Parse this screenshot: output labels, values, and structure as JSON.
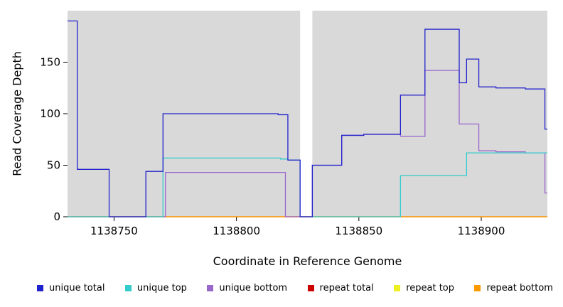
{
  "chart_data": {
    "type": "line",
    "step": true,
    "title": "",
    "xlabel": "Coordinate in Reference Genome",
    "ylabel": "Read Coverage Depth",
    "xlim": [
      1138731,
      1138927
    ],
    "ylim": [
      0,
      200
    ],
    "x_ticks": [
      1138750,
      1138800,
      1138850,
      1138900
    ],
    "y_ticks": [
      0,
      50,
      100,
      150
    ],
    "plot_bg": "#d9d9d9",
    "page_bg": "#ffffff",
    "gap": {
      "from": 1138826,
      "to": 1138831
    },
    "legend_position": "bottom",
    "grid": false,
    "series": [
      {
        "name": "unique total",
        "color": "#2222cc",
        "z": 6,
        "points": [
          [
            1138731,
            190
          ],
          [
            1138735,
            46
          ],
          [
            1138748,
            0
          ],
          [
            1138763,
            44
          ],
          [
            1138770,
            100
          ],
          [
            1138817,
            99
          ],
          [
            1138821,
            55
          ],
          [
            1138826,
            0
          ],
          [
            1138831,
            50
          ],
          [
            1138843,
            79
          ],
          [
            1138852,
            80
          ],
          [
            1138867,
            118
          ],
          [
            1138877,
            182
          ],
          [
            1138891,
            130
          ],
          [
            1138894,
            153
          ],
          [
            1138899,
            126
          ],
          [
            1138906,
            125
          ],
          [
            1138918,
            124
          ],
          [
            1138926,
            85
          ],
          [
            1138927,
            85
          ]
        ]
      },
      {
        "name": "unique top",
        "color": "#33cccc",
        "z": 5,
        "points": [
          [
            1138731,
            0
          ],
          [
            1138770,
            57
          ],
          [
            1138818,
            56
          ],
          [
            1138821,
            55
          ],
          [
            1138826,
            0
          ],
          [
            1138867,
            40
          ],
          [
            1138894,
            62
          ],
          [
            1138927,
            62
          ]
        ]
      },
      {
        "name": "unique bottom",
        "color": "#9966cc",
        "z": 4,
        "points": [
          [
            1138731,
            0
          ],
          [
            1138771,
            43
          ],
          [
            1138820,
            0
          ],
          [
            1138831,
            50
          ],
          [
            1138843,
            79
          ],
          [
            1138852,
            80
          ],
          [
            1138867,
            78
          ],
          [
            1138877,
            142
          ],
          [
            1138891,
            90
          ],
          [
            1138899,
            64
          ],
          [
            1138906,
            63
          ],
          [
            1138918,
            62
          ],
          [
            1138926,
            23
          ],
          [
            1138927,
            23
          ]
        ]
      },
      {
        "name": "repeat total",
        "color": "#cc0000",
        "z": 1,
        "points": [
          [
            1138731,
            0
          ],
          [
            1138927,
            0
          ]
        ]
      },
      {
        "name": "repeat top",
        "color": "#eeee22",
        "z": 2,
        "points": [
          [
            1138731,
            0
          ],
          [
            1138927,
            0
          ]
        ]
      },
      {
        "name": "repeat bottom",
        "color": "#ff9900",
        "z": 3,
        "points": [
          [
            1138731,
            0
          ],
          [
            1138927,
            0
          ]
        ]
      }
    ]
  }
}
